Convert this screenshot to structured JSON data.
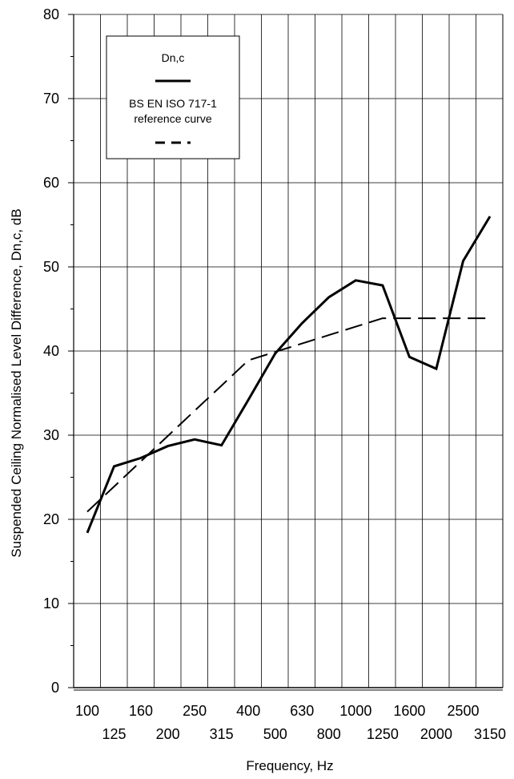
{
  "chart_data": {
    "type": "line",
    "xlabel": "Frequency, Hz",
    "ylabel": "Suspended Ceiling Normalised Level Difference, Dn,c, dB",
    "ylim": [
      0,
      80
    ],
    "yticks": [
      "0",
      "10",
      "20",
      "30",
      "40",
      "50",
      "60",
      "70",
      "80"
    ],
    "categories": [
      "100",
      "125",
      "160",
      "200",
      "250",
      "315",
      "400",
      "500",
      "630",
      "800",
      "1000",
      "1250",
      "1600",
      "2000",
      "2500",
      "3150"
    ],
    "grid": true,
    "legend_position": "top-left",
    "series": [
      {
        "name": "Dn,c",
        "style": "solid",
        "color": "#000000",
        "values": [
          18.4,
          26.3,
          27.3,
          28.7,
          29.5,
          28.8,
          34.2,
          39.7,
          43.3,
          46.4,
          48.4,
          47.8,
          39.3,
          37.9,
          50.7,
          56.0
        ]
      },
      {
        "name": "BS EN ISO 717-1 reference curve",
        "style": "dashed",
        "color": "#000000",
        "values": [
          20.9,
          23.9,
          26.9,
          29.9,
          32.9,
          35.9,
          38.9,
          39.9,
          40.9,
          41.9,
          42.9,
          43.9,
          43.9,
          43.9,
          43.9,
          43.9
        ]
      }
    ],
    "legend": {
      "entries": [
        {
          "lines": [
            "Dn,c"
          ],
          "style": "solid"
        },
        {
          "lines": [
            "BS EN ISO 717-1",
            "reference curve"
          ],
          "style": "dashed"
        }
      ]
    }
  }
}
